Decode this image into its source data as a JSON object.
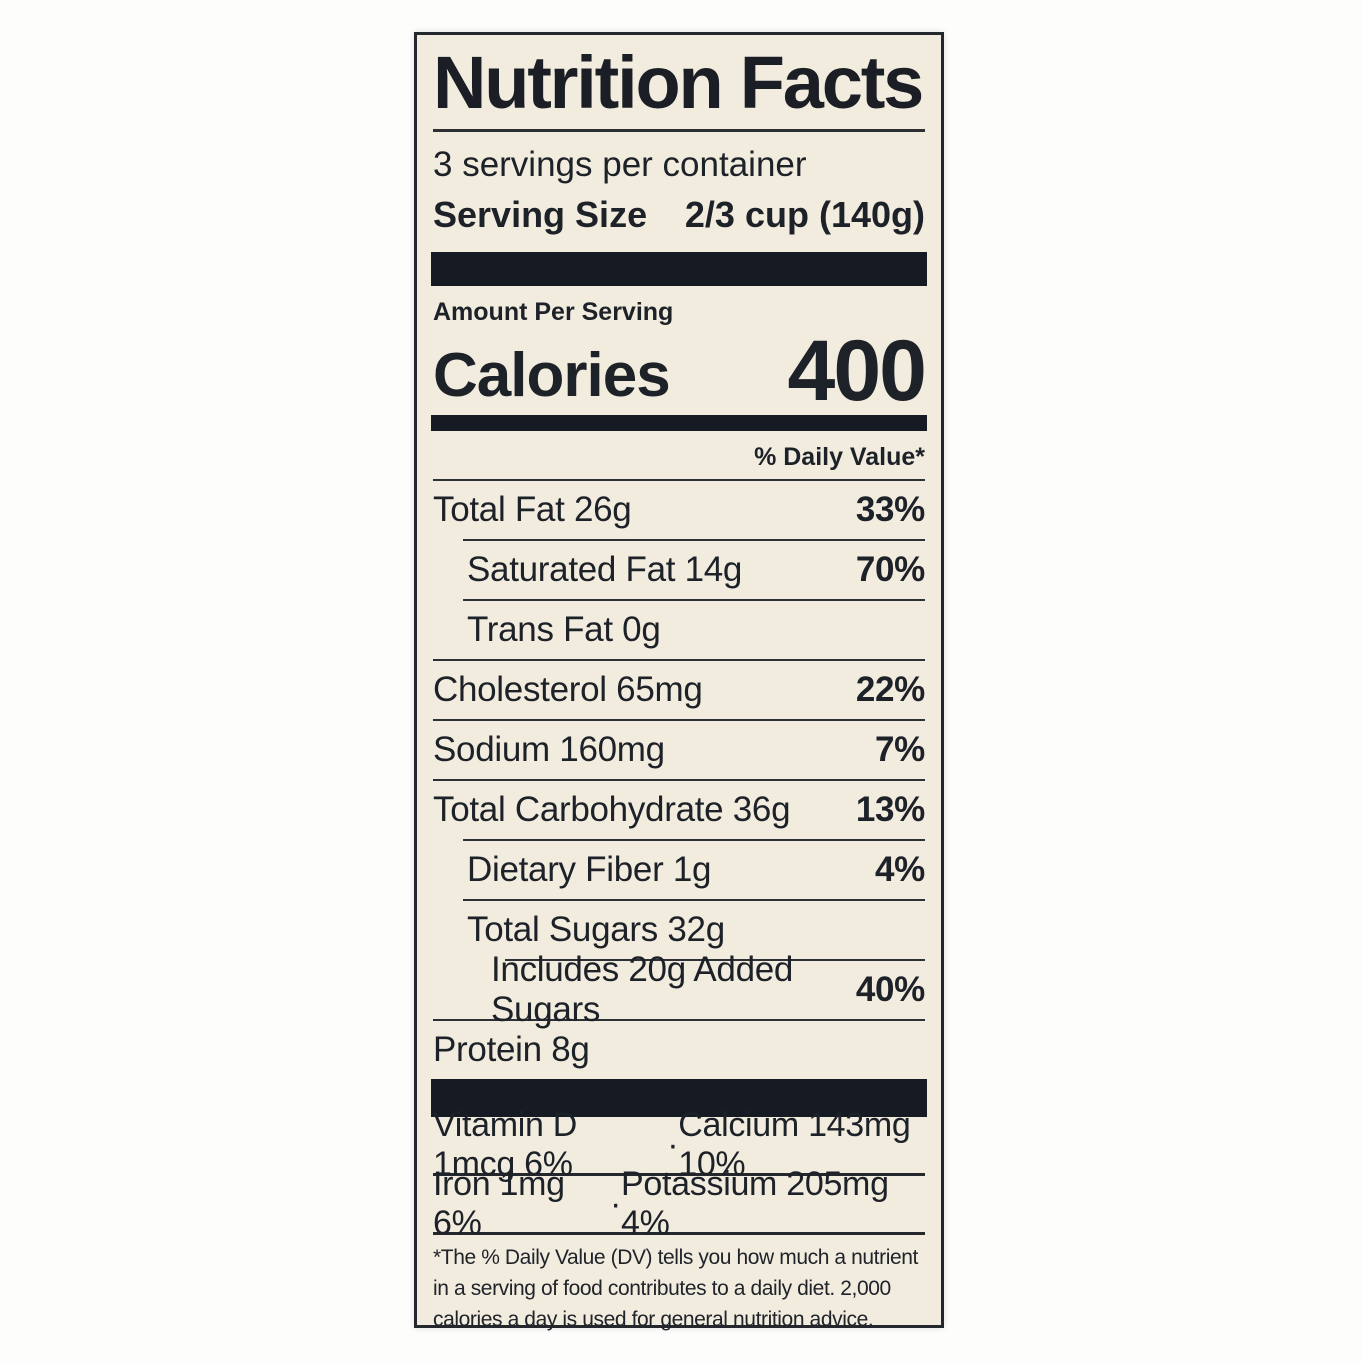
{
  "label": {
    "title": "Nutrition Facts",
    "servings_per_container": "3 servings per container",
    "serving_size_label": "Serving Size",
    "serving_size_value": "2/3 cup (140g)",
    "amount_per_serving": "Amount Per Serving",
    "calories_label": "Calories",
    "calories_value": "400",
    "daily_value_header": "% Daily Value*",
    "nutrients": [
      {
        "name": "Total Fat 26g",
        "dv": "33%",
        "indent": 0
      },
      {
        "name": "Saturated Fat 14g",
        "dv": "70%",
        "indent": 1
      },
      {
        "name": "Trans Fat 0g",
        "dv": "",
        "indent": 1
      },
      {
        "name": "Cholesterol 65mg",
        "dv": "22%",
        "indent": 0
      },
      {
        "name": "Sodium 160mg",
        "dv": "7%",
        "indent": 0
      },
      {
        "name": "Total Carbohydrate 36g",
        "dv": "13%",
        "indent": 0
      },
      {
        "name": "Dietary Fiber 1g",
        "dv": "4%",
        "indent": 1
      },
      {
        "name": "Total Sugars 32g",
        "dv": "",
        "indent": 1
      },
      {
        "name": "Includes 20g Added Sugars",
        "dv": "40%",
        "indent": 2
      },
      {
        "name": "Protein 8g",
        "dv": "",
        "indent": 0
      }
    ],
    "micronutrients": [
      {
        "left": "Vitamin D 1mcg 6%",
        "separator": "·",
        "right": "Calcium 143mg 10%"
      },
      {
        "left": "Iron 1mg 6%",
        "separator": "·",
        "right": "Potassium 205mg 4%"
      }
    ],
    "footnote": "*The % Daily Value (DV) tells you how much a nutrient in a serving of food contributes to a daily diet. 2,000 calories a day is used for general nutrition advice.",
    "colors": {
      "label_background": "#f2ecdf",
      "text": "#1d2128",
      "bar": "#161a22"
    }
  }
}
